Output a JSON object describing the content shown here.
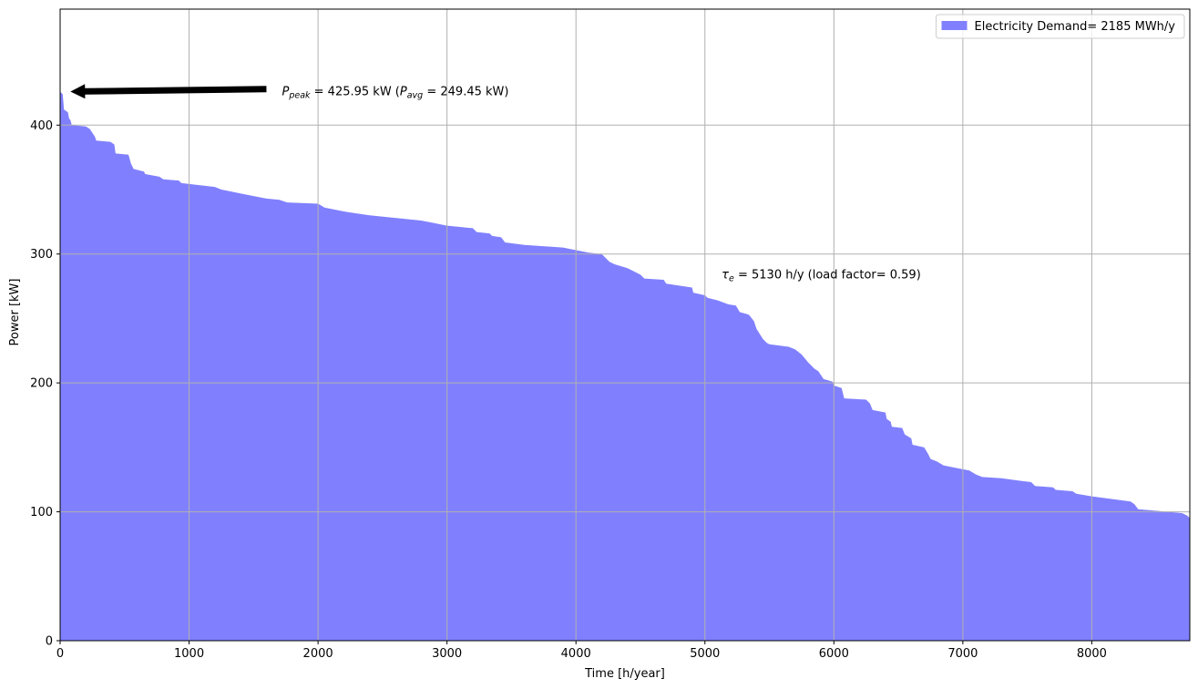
{
  "chart_data": {
    "type": "area",
    "title": "",
    "xlabel": "Time [h/year]",
    "ylabel": "Power [kW]",
    "xlim": [
      0,
      8760
    ],
    "ylim": [
      0,
      490
    ],
    "xticks": [
      0,
      1000,
      2000,
      3000,
      4000,
      5000,
      6000,
      7000,
      8000
    ],
    "yticks": [
      0,
      100,
      200,
      300,
      400
    ],
    "grid": true,
    "legend_position": "top-right",
    "series": [
      {
        "name": "Electricity Demand= 2185 MWh/y",
        "color": "#8080ff",
        "points": [
          [
            0,
            426
          ],
          [
            20,
            424
          ],
          [
            30,
            412
          ],
          [
            60,
            410
          ],
          [
            70,
            405
          ],
          [
            80,
            404
          ],
          [
            90,
            400
          ],
          [
            200,
            399
          ],
          [
            230,
            397
          ],
          [
            250,
            394
          ],
          [
            270,
            391
          ],
          [
            280,
            388
          ],
          [
            390,
            387
          ],
          [
            420,
            385
          ],
          [
            430,
            378
          ],
          [
            530,
            377
          ],
          [
            550,
            370
          ],
          [
            570,
            366
          ],
          [
            650,
            364
          ],
          [
            660,
            362
          ],
          [
            770,
            360
          ],
          [
            800,
            358
          ],
          [
            920,
            357
          ],
          [
            940,
            355
          ],
          [
            1200,
            352
          ],
          [
            1250,
            350
          ],
          [
            1350,
            348
          ],
          [
            1500,
            345
          ],
          [
            1600,
            343
          ],
          [
            1700,
            342
          ],
          [
            1760,
            340
          ],
          [
            2000,
            339
          ],
          [
            2050,
            336
          ],
          [
            2200,
            333
          ],
          [
            2400,
            330
          ],
          [
            2600,
            328
          ],
          [
            2800,
            326
          ],
          [
            2900,
            324
          ],
          [
            3000,
            322
          ],
          [
            3100,
            321
          ],
          [
            3200,
            320
          ],
          [
            3230,
            317
          ],
          [
            3330,
            316
          ],
          [
            3350,
            314
          ],
          [
            3420,
            313
          ],
          [
            3450,
            309
          ],
          [
            3600,
            307
          ],
          [
            3900,
            305
          ],
          [
            4000,
            303
          ],
          [
            4100,
            301
          ],
          [
            4200,
            300
          ],
          [
            4260,
            294
          ],
          [
            4300,
            292
          ],
          [
            4400,
            289
          ],
          [
            4500,
            284
          ],
          [
            4530,
            281
          ],
          [
            4680,
            280
          ],
          [
            4700,
            277
          ],
          [
            4900,
            274
          ],
          [
            4910,
            270
          ],
          [
            5000,
            268
          ],
          [
            5020,
            266
          ],
          [
            5100,
            264
          ],
          [
            5180,
            261
          ],
          [
            5240,
            260
          ],
          [
            5270,
            255
          ],
          [
            5340,
            253
          ],
          [
            5380,
            248
          ],
          [
            5400,
            242
          ],
          [
            5450,
            234
          ],
          [
            5480,
            231
          ],
          [
            5500,
            230
          ],
          [
            5650,
            228
          ],
          [
            5700,
            226
          ],
          [
            5750,
            222
          ],
          [
            5800,
            216
          ],
          [
            5850,
            211
          ],
          [
            5880,
            209
          ],
          [
            5900,
            206
          ],
          [
            5920,
            203
          ],
          [
            5990,
            201
          ],
          [
            6000,
            198
          ],
          [
            6060,
            196
          ],
          [
            6080,
            188
          ],
          [
            6250,
            187
          ],
          [
            6280,
            184
          ],
          [
            6300,
            179
          ],
          [
            6400,
            177
          ],
          [
            6410,
            172
          ],
          [
            6440,
            170
          ],
          [
            6450,
            166
          ],
          [
            6530,
            165
          ],
          [
            6550,
            160
          ],
          [
            6600,
            157
          ],
          [
            6610,
            152
          ],
          [
            6700,
            150
          ],
          [
            6730,
            145
          ],
          [
            6750,
            141
          ],
          [
            6800,
            139
          ],
          [
            6850,
            136
          ],
          [
            6950,
            134
          ],
          [
            7050,
            132
          ],
          [
            7100,
            129
          ],
          [
            7150,
            127
          ],
          [
            7300,
            126
          ],
          [
            7450,
            124
          ],
          [
            7530,
            123
          ],
          [
            7560,
            120
          ],
          [
            7700,
            119
          ],
          [
            7720,
            117
          ],
          [
            7850,
            116
          ],
          [
            7880,
            114
          ],
          [
            8000,
            112
          ],
          [
            8300,
            108
          ],
          [
            8330,
            106
          ],
          [
            8360,
            102
          ],
          [
            8700,
            99
          ],
          [
            8740,
            97
          ],
          [
            8760,
            95
          ]
        ]
      }
    ],
    "annotations": [
      {
        "text_main": "P",
        "text_sub": "peak",
        "text_rest": " = 425.95 kW (",
        "text_main2": "P",
        "text_sub2": "avg",
        "text_rest2": " = 249.45 kW)",
        "arrow_from": [
          1600,
          428
        ],
        "arrow_to": [
          80,
          426
        ],
        "text_at": [
          1720,
          426
        ]
      },
      {
        "text_main": "τ",
        "text_sub": "e",
        "text_rest": " = 5130 h/y (load factor= 0.59)",
        "text_at": [
          5130,
          284
        ]
      }
    ]
  }
}
